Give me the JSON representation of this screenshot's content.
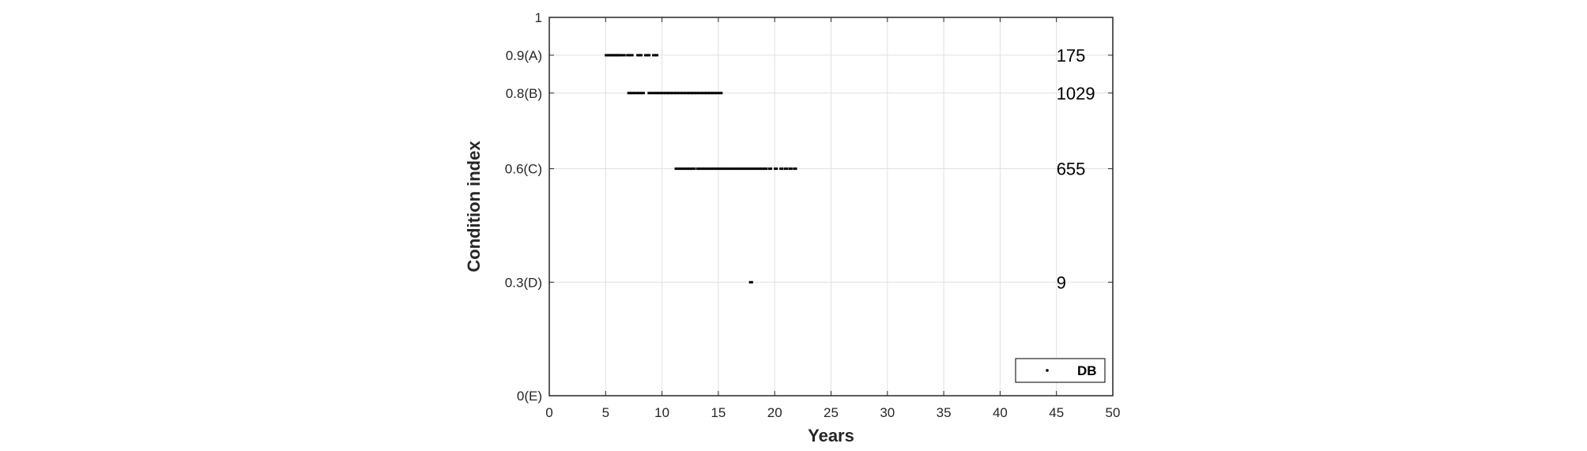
{
  "chart_data": {
    "type": "scatter",
    "xlabel": "Years",
    "ylabel": "Condition index",
    "xlim": [
      0,
      50
    ],
    "ylim": [
      0,
      1
    ],
    "x_ticks": [
      0,
      5,
      10,
      15,
      20,
      25,
      30,
      35,
      40,
      45,
      50
    ],
    "y_ticks": [
      {
        "value": 0,
        "label": "0(E)"
      },
      {
        "value": 0.3,
        "label": "0.3(D)"
      },
      {
        "value": 0.6,
        "label": "0.6(C)"
      },
      {
        "value": 0.8,
        "label": "0.8(B)"
      },
      {
        "value": 0.9,
        "label": "0.9(A)"
      },
      {
        "value": 1,
        "label": "1"
      }
    ],
    "grid": true,
    "legend": {
      "position": "bottom-right",
      "entries": [
        "DB"
      ]
    },
    "colors": {
      "points": "#000000",
      "grid": "#e0e0e0",
      "axes": "#262626"
    },
    "series": [
      {
        "name": "DB",
        "points": [
          {
            "x": 5.1,
            "y": 0.9
          },
          {
            "x": 5.3,
            "y": 0.9
          },
          {
            "x": 5.5,
            "y": 0.9
          },
          {
            "x": 5.7,
            "y": 0.9
          },
          {
            "x": 5.9,
            "y": 0.9
          },
          {
            "x": 6.1,
            "y": 0.9
          },
          {
            "x": 6.3,
            "y": 0.9
          },
          {
            "x": 6.6,
            "y": 0.9
          },
          {
            "x": 7.0,
            "y": 0.9
          },
          {
            "x": 7.3,
            "y": 0.9
          },
          {
            "x": 7.9,
            "y": 0.9
          },
          {
            "x": 8.1,
            "y": 0.9
          },
          {
            "x": 8.6,
            "y": 0.9
          },
          {
            "x": 8.8,
            "y": 0.9
          },
          {
            "x": 9.3,
            "y": 0.9
          },
          {
            "x": 9.5,
            "y": 0.9
          },
          {
            "x": 7.1,
            "y": 0.8
          },
          {
            "x": 7.4,
            "y": 0.8
          },
          {
            "x": 7.7,
            "y": 0.8
          },
          {
            "x": 8.0,
            "y": 0.8
          },
          {
            "x": 8.3,
            "y": 0.8
          },
          {
            "x": 8.9,
            "y": 0.8
          },
          {
            "x": 9.2,
            "y": 0.8
          },
          {
            "x": 9.5,
            "y": 0.8
          },
          {
            "x": 9.8,
            "y": 0.8
          },
          {
            "x": 10.1,
            "y": 0.8
          },
          {
            "x": 10.4,
            "y": 0.8
          },
          {
            "x": 10.7,
            "y": 0.8
          },
          {
            "x": 11.0,
            "y": 0.8
          },
          {
            "x": 11.3,
            "y": 0.8
          },
          {
            "x": 11.6,
            "y": 0.8
          },
          {
            "x": 11.9,
            "y": 0.8
          },
          {
            "x": 12.2,
            "y": 0.8
          },
          {
            "x": 12.5,
            "y": 0.8
          },
          {
            "x": 12.8,
            "y": 0.8
          },
          {
            "x": 13.1,
            "y": 0.8
          },
          {
            "x": 13.4,
            "y": 0.8
          },
          {
            "x": 13.7,
            "y": 0.8
          },
          {
            "x": 14.0,
            "y": 0.8
          },
          {
            "x": 14.3,
            "y": 0.8
          },
          {
            "x": 14.6,
            "y": 0.8
          },
          {
            "x": 14.9,
            "y": 0.8
          },
          {
            "x": 15.2,
            "y": 0.8
          },
          {
            "x": 11.3,
            "y": 0.6
          },
          {
            "x": 11.6,
            "y": 0.6
          },
          {
            "x": 11.9,
            "y": 0.6
          },
          {
            "x": 12.2,
            "y": 0.6
          },
          {
            "x": 12.5,
            "y": 0.6
          },
          {
            "x": 12.8,
            "y": 0.6
          },
          {
            "x": 13.2,
            "y": 0.6
          },
          {
            "x": 13.5,
            "y": 0.6
          },
          {
            "x": 13.8,
            "y": 0.6
          },
          {
            "x": 14.1,
            "y": 0.6
          },
          {
            "x": 14.4,
            "y": 0.6
          },
          {
            "x": 14.7,
            "y": 0.6
          },
          {
            "x": 15.0,
            "y": 0.6
          },
          {
            "x": 15.3,
            "y": 0.6
          },
          {
            "x": 15.6,
            "y": 0.6
          },
          {
            "x": 15.9,
            "y": 0.6
          },
          {
            "x": 16.2,
            "y": 0.6
          },
          {
            "x": 16.5,
            "y": 0.6
          },
          {
            "x": 16.8,
            "y": 0.6
          },
          {
            "x": 17.1,
            "y": 0.6
          },
          {
            "x": 17.4,
            "y": 0.6
          },
          {
            "x": 17.7,
            "y": 0.6
          },
          {
            "x": 18.0,
            "y": 0.6
          },
          {
            "x": 18.3,
            "y": 0.6
          },
          {
            "x": 18.6,
            "y": 0.6
          },
          {
            "x": 18.9,
            "y": 0.6
          },
          {
            "x": 19.2,
            "y": 0.6
          },
          {
            "x": 19.6,
            "y": 0.6
          },
          {
            "x": 20.1,
            "y": 0.6
          },
          {
            "x": 20.6,
            "y": 0.6
          },
          {
            "x": 21.0,
            "y": 0.6
          },
          {
            "x": 21.4,
            "y": 0.6
          },
          {
            "x": 21.8,
            "y": 0.6
          },
          {
            "x": 17.9,
            "y": 0.3
          }
        ]
      }
    ],
    "annotations": [
      {
        "x": 45,
        "y": 0.9,
        "text": "175"
      },
      {
        "x": 45,
        "y": 0.8,
        "text": "1029"
      },
      {
        "x": 45,
        "y": 0.6,
        "text": "655"
      },
      {
        "x": 45,
        "y": 0.3,
        "text": "9"
      }
    ]
  }
}
